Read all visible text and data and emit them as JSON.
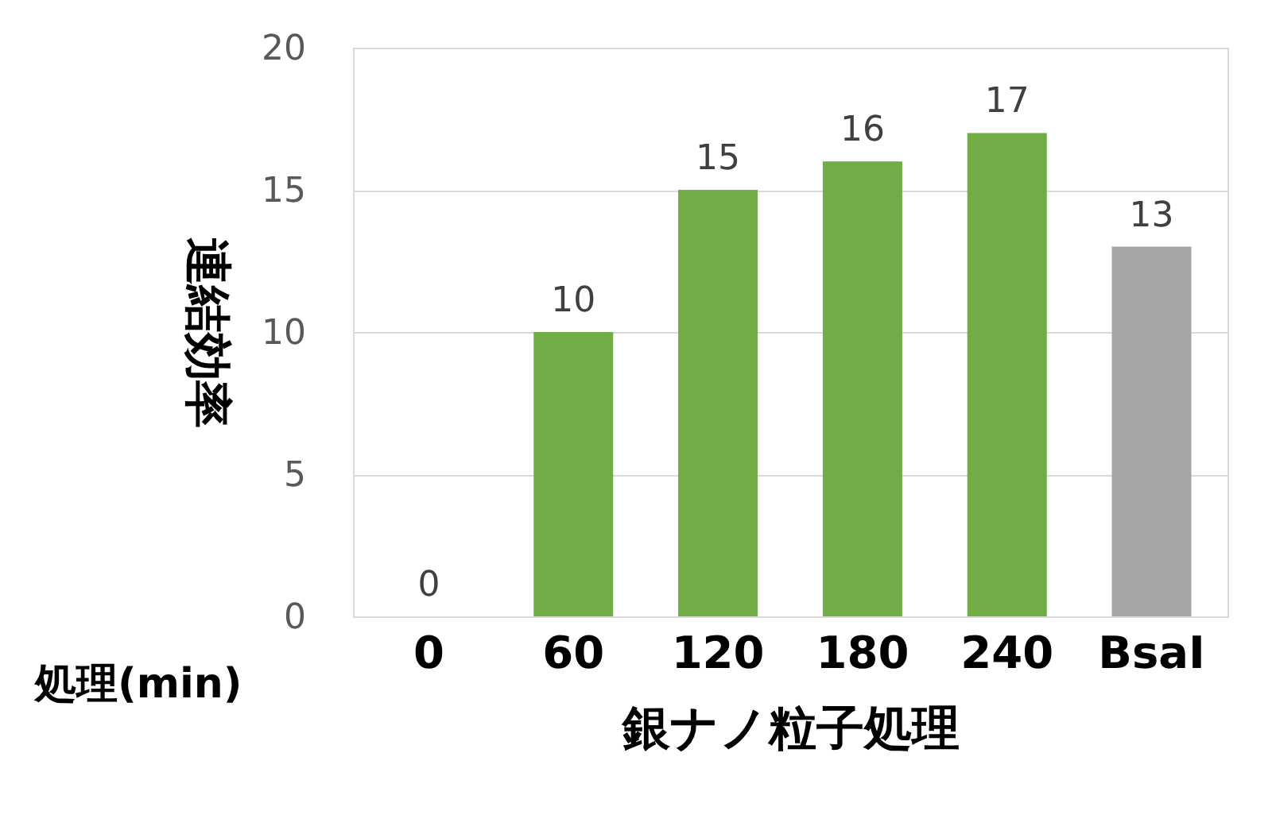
{
  "chart_data": {
    "type": "bar",
    "categories": [
      "0",
      "60",
      "120",
      "180",
      "240",
      "BsaI"
    ],
    "values": [
      0,
      10,
      15,
      16,
      17,
      13
    ],
    "colors": [
      "#70ad47",
      "#70ad47",
      "#70ad47",
      "#70ad47",
      "#70ad47",
      "#a5a5a5"
    ],
    "ylim": [
      0,
      20
    ],
    "yticks": [
      0,
      5,
      10,
      15,
      20
    ],
    "ylabel": "連結効率",
    "xlabel": "銀ナノ粒子処理",
    "annotations": [
      "処理(min)"
    ],
    "data_labels": true,
    "grid": "y"
  }
}
